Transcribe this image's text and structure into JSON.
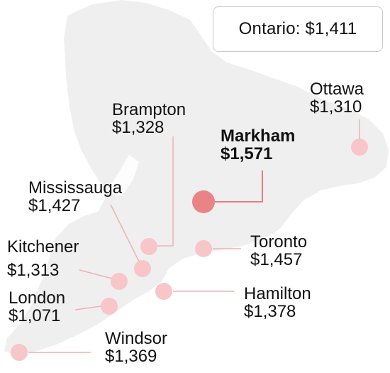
{
  "summary": {
    "region": "Ontario",
    "value": "$1,411",
    "text": "Ontario: $1,411"
  },
  "colors": {
    "land": "#efefef",
    "marker": "#f8c6c8",
    "marker_highlight": "#e98385",
    "leader_line": "#f0b0b3",
    "highlight_line": "#e05a5f",
    "box_border": "#c9c9c9"
  },
  "cities": [
    {
      "name": "Ottawa",
      "value": "$1,310",
      "highlight": false
    },
    {
      "name": "Brampton",
      "value": "$1,328",
      "highlight": false
    },
    {
      "name": "Markham",
      "value": "$1,571",
      "highlight": true
    },
    {
      "name": "Mississauga",
      "value": "$1,427",
      "highlight": false
    },
    {
      "name": "Toronto",
      "value": "$1,457",
      "highlight": false
    },
    {
      "name": "Kitchener",
      "value": "$1,313",
      "highlight": false
    },
    {
      "name": "Hamilton",
      "value": "$1,378",
      "highlight": false
    },
    {
      "name": "London",
      "value": "$1,071",
      "highlight": false
    },
    {
      "name": "Windsor",
      "value": "$1,369",
      "highlight": false
    }
  ]
}
